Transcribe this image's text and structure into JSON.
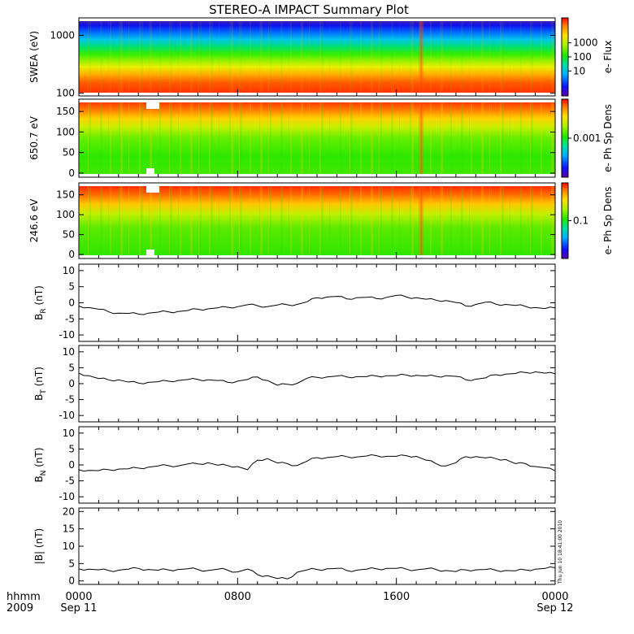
{
  "chart_data": [
    {
      "type": "heatmap",
      "title": "STEREO-A IMPACT Summary Plot",
      "ylabel": "SWEA (eV)",
      "y_scale": "log",
      "ylim": [
        90,
        2000
      ],
      "y_ticks": [
        "1000",
        "100"
      ],
      "colorbar": {
        "label": "e- Flux",
        "scale": "log",
        "ticks": [
          "1000",
          "100",
          "10"
        ]
      }
    },
    {
      "type": "heatmap",
      "ylabel": "650.7 eV",
      "ylim": [
        -10,
        180
      ],
      "y_ticks": [
        "150",
        "100",
        "50",
        "0"
      ],
      "colorbar": {
        "label": "e- Ph Sp Dens",
        "scale": "log",
        "ticks": [
          "0.001"
        ]
      }
    },
    {
      "type": "heatmap",
      "ylabel": "246.6 eV",
      "ylim": [
        -10,
        180
      ],
      "y_ticks": [
        "150",
        "100",
        "50",
        "0"
      ],
      "colorbar": {
        "label": "e- Ph Sp Dens",
        "scale": "log",
        "ticks": [
          "0.1"
        ]
      }
    },
    {
      "type": "line",
      "ylabel": "B",
      "ylabel_sub": "R",
      "ylabel_unit": " (nT)",
      "ylim": [
        -12,
        12
      ],
      "y_ticks": [
        10,
        5,
        0,
        -5,
        -10
      ],
      "x": [
        0,
        0.5,
        1,
        1.5,
        2,
        2.5,
        3,
        3.5,
        4,
        4.5,
        5,
        5.5,
        6,
        6.5,
        7,
        7.5,
        8,
        8.5,
        9,
        9.5,
        10,
        10.5,
        11,
        11.5,
        12,
        12.5,
        13,
        13.5,
        14,
        14.5,
        15,
        15.5,
        16,
        16.5,
        17,
        17.5,
        18,
        18.5,
        19,
        19.5,
        20,
        20.5,
        21,
        21.5,
        22,
        22.5,
        23,
        23.5,
        24
      ],
      "values": [
        -1,
        -1.5,
        -2,
        -2.8,
        -3.2,
        -3.3,
        -3.5,
        -3.2,
        -2.9,
        -2.8,
        -2.7,
        -2.4,
        -2,
        -1.9,
        -1.6,
        -1.4,
        -1.2,
        -0.6,
        -0.9,
        -1.2,
        -0.7,
        -0.6,
        -0.5,
        0.3,
        1.6,
        1.8,
        2,
        1.2,
        1.6,
        1.7,
        1.3,
        1.7,
        2.3,
        1.8,
        1.6,
        1.1,
        0.8,
        0.7,
        0.1,
        -1,
        -0.5,
        0.2,
        -0.4,
        -0.5,
        -0.8,
        -1.1,
        -1.5,
        -1.8,
        -1.6
      ]
    },
    {
      "type": "line",
      "ylabel": "B",
      "ylabel_sub": "T",
      "ylabel_unit": " (nT)",
      "ylim": [
        -12,
        12
      ],
      "y_ticks": [
        10,
        5,
        0,
        -5,
        -10
      ],
      "x": [
        0,
        0.5,
        1,
        1.5,
        2,
        2.5,
        3,
        3.5,
        4,
        4.5,
        5,
        5.5,
        6,
        6.5,
        7,
        7.5,
        8,
        8.5,
        9,
        9.5,
        10,
        10.5,
        11,
        11.5,
        12,
        12.5,
        13,
        13.5,
        14,
        14.5,
        15,
        15.5,
        16,
        16.5,
        17,
        17.5,
        18,
        18.5,
        19,
        19.5,
        20,
        20.5,
        21,
        21.5,
        22,
        22.5,
        23,
        23.5,
        24
      ],
      "values": [
        3.3,
        2.5,
        1.6,
        1.2,
        1.2,
        0.5,
        0.2,
        0.4,
        0.6,
        0.8,
        1,
        1.3,
        1.3,
        1.2,
        1,
        0.4,
        0.8,
        1.3,
        2.1,
        1,
        -0.5,
        -0.2,
        0.1,
        1.7,
        2,
        2.1,
        2.4,
        2.1,
        2.2,
        2.2,
        2.4,
        2.5,
        2.5,
        2.7,
        2.6,
        2.4,
        2.3,
        2.5,
        2.3,
        1.2,
        1.4,
        1.8,
        2.8,
        3,
        3.2,
        3.5,
        3.7,
        3.3,
        3.1
      ]
    },
    {
      "type": "line",
      "ylabel": "B",
      "ylabel_sub": "N",
      "ylabel_unit": " (nT)",
      "ylim": [
        -12,
        12
      ],
      "y_ticks": [
        10,
        5,
        0,
        -5,
        -10
      ],
      "x": [
        0,
        0.5,
        1,
        1.5,
        2,
        2.5,
        3,
        3.5,
        4,
        4.5,
        5,
        5.5,
        6,
        6.5,
        7,
        7.5,
        8,
        8.5,
        9,
        9.5,
        10,
        10.5,
        11,
        11.5,
        12,
        12.5,
        13,
        13.5,
        14,
        14.5,
        15,
        15.5,
        16,
        16.5,
        17,
        17.5,
        18,
        18.5,
        19,
        19.5,
        20,
        20.5,
        21,
        21.5,
        22,
        22.5,
        23,
        23.5,
        24
      ],
      "values": [
        -1.5,
        -1.7,
        -1.8,
        -1.5,
        -1.3,
        -1.2,
        -1,
        -0.7,
        -0.3,
        -0.2,
        -0.3,
        0.3,
        0.3,
        0.7,
        -0.1,
        -0.2,
        -0.5,
        -1.5,
        1.5,
        2,
        0.6,
        0.4,
        -0.2,
        1.2,
        2.3,
        2.3,
        2.6,
        2.6,
        2.5,
        2.8,
        2.9,
        2.7,
        2.7,
        2.9,
        2.7,
        1.5,
        0.4,
        -0.3,
        0.7,
        2.6,
        2.6,
        2.2,
        2,
        1.7,
        0.4,
        0.4,
        -0.5,
        -0.9,
        -1.9
      ]
    },
    {
      "type": "line",
      "ylabel": "|B| (nT)",
      "ylim": [
        -1,
        21
      ],
      "y_ticks": [
        20,
        15,
        10,
        5,
        0
      ],
      "x": [
        0,
        0.5,
        1,
        1.5,
        2,
        2.5,
        3,
        3.5,
        4,
        4.5,
        5,
        5.5,
        6,
        6.5,
        7,
        7.5,
        8,
        8.5,
        9,
        9.5,
        10,
        10.5,
        11,
        11.5,
        12,
        12.5,
        13,
        13.5,
        14,
        14.5,
        15,
        15.5,
        16,
        16.5,
        17,
        17.5,
        18,
        18.5,
        19,
        19.5,
        20,
        20.5,
        21,
        21.5,
        22,
        22.5,
        23,
        23.5,
        24
      ],
      "values": [
        3.5,
        3.4,
        3.2,
        3,
        3.1,
        3.4,
        3.6,
        3.3,
        3.1,
        3.2,
        3.3,
        3.5,
        3.3,
        3,
        3.4,
        3.1,
        2.6,
        3.4,
        1.8,
        1.5,
        0.7,
        0.6,
        2.5,
        3.2,
        3.3,
        3.5,
        3.6,
        3,
        3.1,
        3.4,
        3.5,
        3.6,
        3.6,
        3.4,
        3.2,
        3.5,
        3.3,
        3,
        2.7,
        3.2,
        3.2,
        3.3,
        3.1,
        3,
        2.9,
        3.2,
        3.4,
        3.6,
        3.8
      ]
    }
  ],
  "x_axis": {
    "ticks": [
      {
        "hour": 0,
        "label": "0000",
        "sublabel": "Sep 11"
      },
      {
        "hour": 8,
        "label": "0800",
        "sublabel": ""
      },
      {
        "hour": 16,
        "label": "1600",
        "sublabel": ""
      },
      {
        "hour": 24,
        "label": "0000",
        "sublabel": "Sep 12"
      }
    ],
    "corner_label_top": "hhmm",
    "corner_label_bottom": "2009"
  },
  "timestamp": "Thu Jun 10 18:41:00 2010"
}
